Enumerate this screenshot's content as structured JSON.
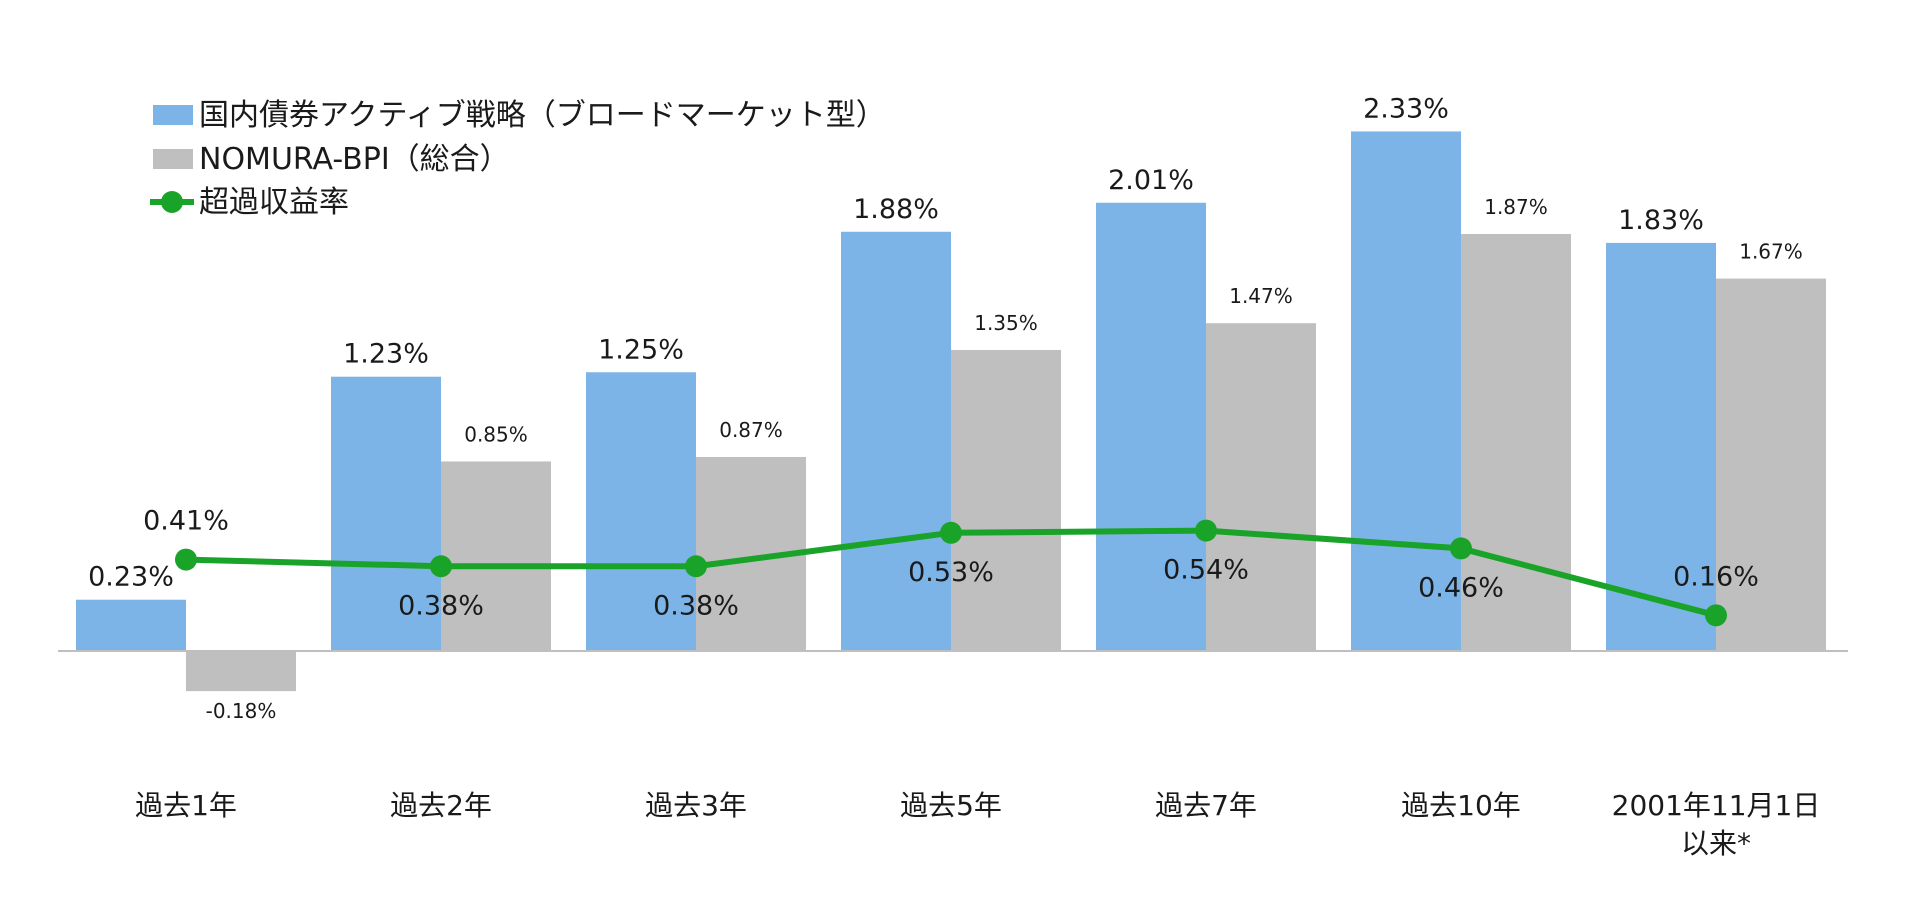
{
  "chart_data": {
    "type": "bar",
    "categories": [
      [
        "過去1年"
      ],
      [
        "過去2年"
      ],
      [
        "過去3年"
      ],
      [
        "過去5年"
      ],
      [
        "過去7年"
      ],
      [
        "過去10年"
      ],
      [
        "2001年11月1日",
        "以来*"
      ]
    ],
    "series": [
      {
        "name": "国内債券アクティブ戦略（ブロードマーケット型）",
        "type": "bar",
        "color": "#7cb4e8",
        "values": [
          0.23,
          1.23,
          1.25,
          1.88,
          2.01,
          2.33,
          1.83
        ],
        "labels": [
          "0.23%",
          "1.23%",
          "1.25%",
          "1.88%",
          "2.01%",
          "2.33%",
          "1.83%"
        ]
      },
      {
        "name": "NOMURA-BPI（総合）",
        "type": "bar",
        "color": "#bfbfbf",
        "values": [
          -0.18,
          0.85,
          0.87,
          1.35,
          1.47,
          1.87,
          1.67
        ],
        "labels": [
          "-0.18%",
          "0.85%",
          "0.87%",
          "1.35%",
          "1.47%",
          "1.87%",
          "1.67%"
        ]
      },
      {
        "name": "超過収益率",
        "type": "line",
        "color": "#1aa329",
        "values": [
          0.41,
          0.38,
          0.38,
          0.53,
          0.54,
          0.46,
          0.16
        ],
        "labels": [
          "0.41%",
          "0.38%",
          "0.38%",
          "0.53%",
          "0.54%",
          "0.46%",
          "0.16%"
        ]
      }
    ],
    "ylim": [
      -0.5,
      2.7
    ],
    "grid": false,
    "legend": "top-left"
  }
}
